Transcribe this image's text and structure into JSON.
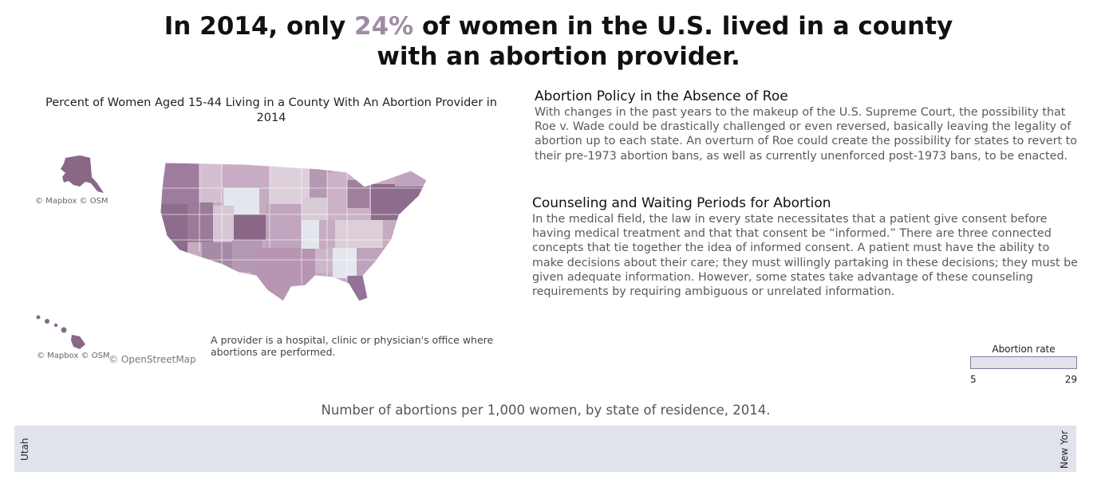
{
  "headline": {
    "before": "In 2014, only ",
    "highlight": "24%",
    "after": " of women in the U.S. lived in a county",
    "line2": "with an abortion provider.",
    "highlight_color": "#a08aa6"
  },
  "map": {
    "title": "Percent of Women Aged 15-44 Living in a County With An Abortion Provider in 2014",
    "attribution_alaska": "© Mapbox © OSM",
    "attribution_hawaii": "© Mapbox © OSM",
    "attribution_main": "© OpenStreetMap",
    "note": "A provider is a hospital, clinic or physician's office where abortions are performed."
  },
  "sections": [
    {
      "heading": "Abortion Policy in the Absence of Roe",
      "body": "With changes in the past years to the makeup of the U.S. Supreme Court, the possibility that Roe v. Wade could be drastically challenged or even reversed, basically leaving the legality of abortion up to each state. An overturn of Roe could create the possibility for states to revert to their pre-1973 abortion bans, as well as currently unenforced post-1973 bans, to be enacted."
    },
    {
      "heading": "Counseling and Waiting Periods for Abortion",
      "body": "In the medical field, the law in every state necessitates that a patient give consent before having medical treatment and that that consent be “informed.” There are three connected concepts that tie together the idea of informed consent. A patient must have the ability to make decisions about their care; they must willingly partaking in these decisions; they must be given adequate information. However, some states take advantage of these counseling requirements by requiring ambiguous or unrelated information."
    }
  ],
  "legend": {
    "title": "Abortion rate",
    "min": "5",
    "max": "29"
  },
  "bar_chart": {
    "title": "Number of abortions per 1,000 women, by state of residence, 2014.",
    "left_label": "Utah",
    "right_label": "New Yor"
  },
  "colors": {
    "map_light": "#e3e6ed",
    "map_dark": "#8a6787",
    "plot_bg": "#e0e3ea"
  }
}
